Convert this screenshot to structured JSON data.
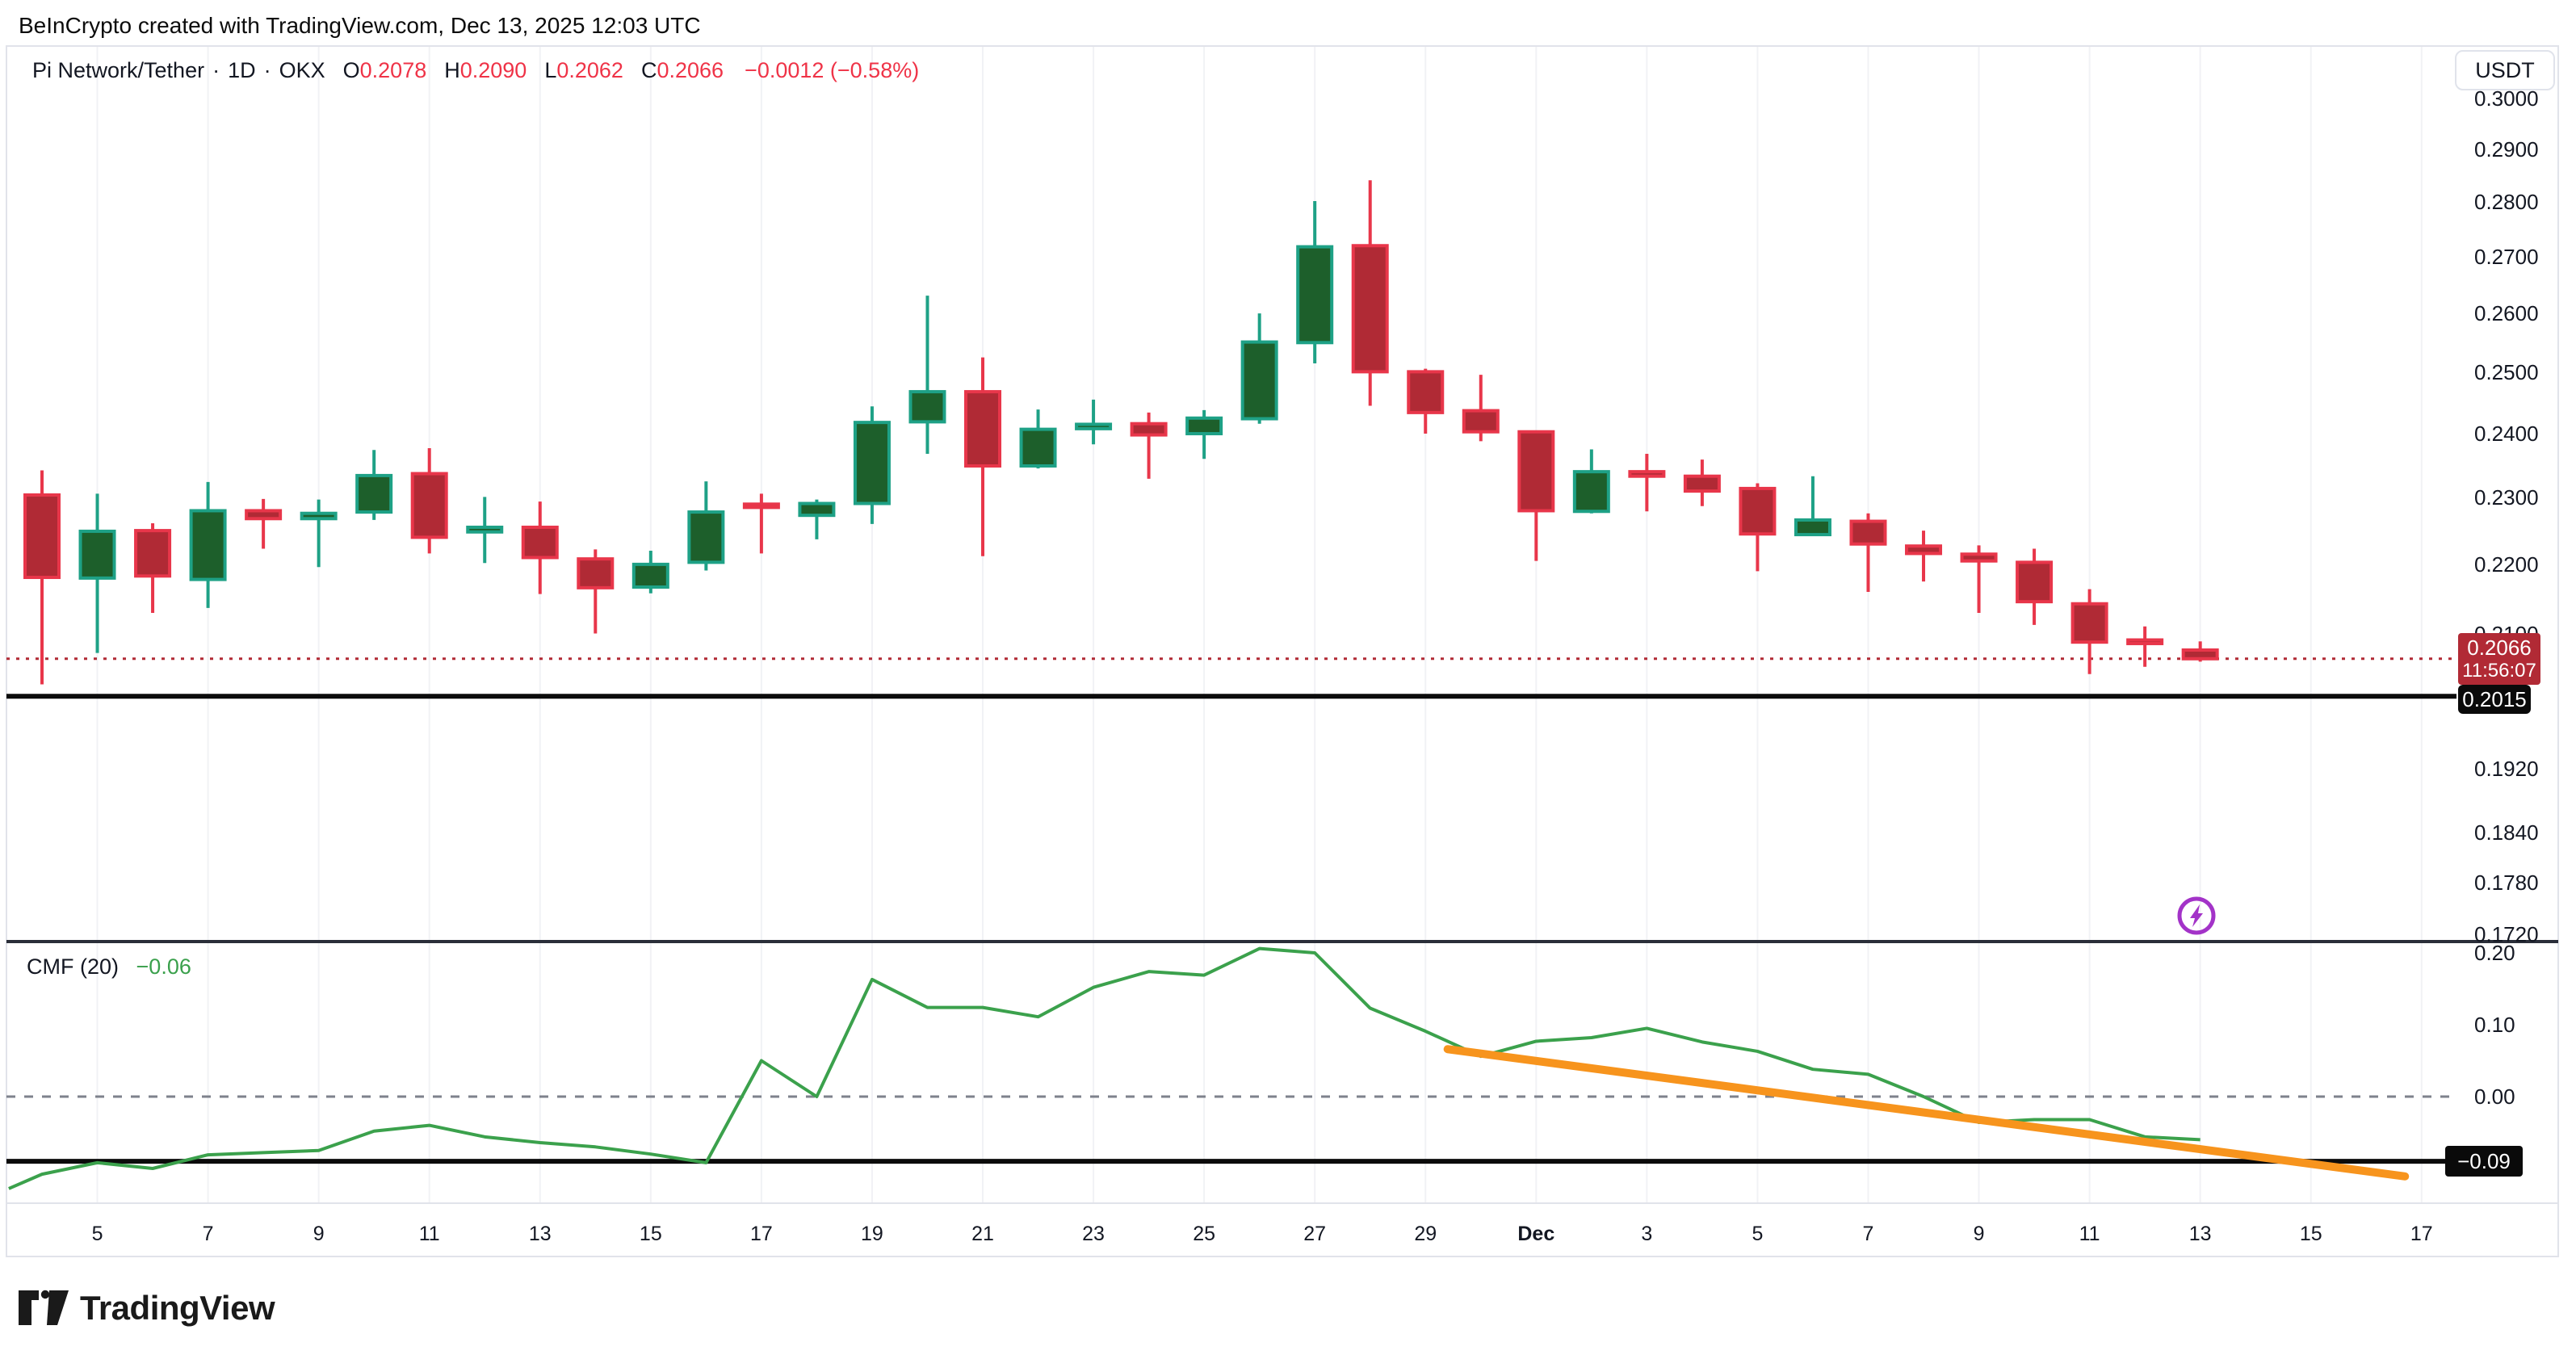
{
  "header": {
    "attribution": "BeInCrypto created with TradingView.com, Dec 13, 2025 12:03 UTC"
  },
  "symbol_bar": {
    "title": "Pi Network/Tether",
    "separator": "·",
    "interval": "1D",
    "exchange": "OKX",
    "ohlc": [
      {
        "k": "O",
        "v": "0.2078"
      },
      {
        "k": "H",
        "v": "0.2090"
      },
      {
        "k": "L",
        "v": "0.2062"
      },
      {
        "k": "C",
        "v": "0.2066"
      }
    ],
    "change": "−0.0012 (−0.58%)",
    "quote_button": "USDT"
  },
  "price_scale": {
    "current": {
      "price": "0.2066",
      "countdown": "11:56:07"
    },
    "support_label": "0.2015"
  },
  "indicator": {
    "name": "CMF",
    "params": "(20)",
    "value": "−0.06",
    "level_label": "−0.09"
  },
  "footer": {
    "brand": "TradingView"
  },
  "chart_data": {
    "type": "candlestick",
    "title": "Pi Network/Tether 1D OKX with CMF(20) indicator",
    "price_axis": {
      "ticks": [
        "0.3000",
        "0.2900",
        "0.2800",
        "0.2700",
        "0.2600",
        "0.2500",
        "0.2400",
        "0.2300",
        "0.2200",
        "0.2100",
        "0.1920",
        "0.1840",
        "0.1780",
        "0.1720"
      ],
      "scale": "logarithmic",
      "range_top": 0.305,
      "range_bottom": 0.171
    },
    "cmf_axis": {
      "ticks": [
        "0.20",
        "0.10",
        "0.00"
      ],
      "level": -0.09,
      "range": [
        -0.14,
        0.22
      ]
    },
    "x_ticks": [
      {
        "day_index": 1,
        "label": "5"
      },
      {
        "day_index": 3,
        "label": "7"
      },
      {
        "day_index": 5,
        "label": "9"
      },
      {
        "day_index": 7,
        "label": "11"
      },
      {
        "day_index": 9,
        "label": "13"
      },
      {
        "day_index": 11,
        "label": "15"
      },
      {
        "day_index": 13,
        "label": "17"
      },
      {
        "day_index": 15,
        "label": "19"
      },
      {
        "day_index": 17,
        "label": "21"
      },
      {
        "day_index": 19,
        "label": "23"
      },
      {
        "day_index": 21,
        "label": "25"
      },
      {
        "day_index": 23,
        "label": "27"
      },
      {
        "day_index": 25,
        "label": "29"
      },
      {
        "day_index": 27,
        "label": "Dec",
        "bold": true
      },
      {
        "day_index": 29,
        "label": "3"
      },
      {
        "day_index": 31,
        "label": "5"
      },
      {
        "day_index": 33,
        "label": "7"
      },
      {
        "day_index": 35,
        "label": "9"
      },
      {
        "day_index": 37,
        "label": "11"
      },
      {
        "day_index": 39,
        "label": "13"
      },
      {
        "day_index": 41,
        "label": "15"
      },
      {
        "day_index": 43,
        "label": "17"
      }
    ],
    "candles": [
      {
        "d": "Nov 4",
        "o": 0.2304,
        "h": 0.2342,
        "l": 0.2031,
        "c": 0.2181
      },
      {
        "d": "Nov 5",
        "o": 0.218,
        "h": 0.2306,
        "l": 0.2074,
        "c": 0.2249
      },
      {
        "d": "Nov 6",
        "o": 0.225,
        "h": 0.2261,
        "l": 0.213,
        "c": 0.2183
      },
      {
        "d": "Nov 7",
        "o": 0.2178,
        "h": 0.2324,
        "l": 0.2137,
        "c": 0.228
      },
      {
        "d": "Nov 8",
        "o": 0.228,
        "h": 0.2298,
        "l": 0.2223,
        "c": 0.2268
      },
      {
        "d": "Nov 9",
        "o": 0.2268,
        "h": 0.2297,
        "l": 0.2196,
        "c": 0.2276
      },
      {
        "d": "Nov 10",
        "o": 0.2278,
        "h": 0.2374,
        "l": 0.2266,
        "c": 0.2334
      },
      {
        "d": "Nov 11",
        "o": 0.2337,
        "h": 0.2377,
        "l": 0.2216,
        "c": 0.224
      },
      {
        "d": "Nov 12",
        "o": 0.2248,
        "h": 0.2301,
        "l": 0.2202,
        "c": 0.2255
      },
      {
        "d": "Nov 13",
        "o": 0.2255,
        "h": 0.2294,
        "l": 0.2157,
        "c": 0.221
      },
      {
        "d": "Nov 14",
        "o": 0.2208,
        "h": 0.2222,
        "l": 0.2101,
        "c": 0.2166
      },
      {
        "d": "Nov 15",
        "o": 0.2167,
        "h": 0.222,
        "l": 0.2158,
        "c": 0.22
      },
      {
        "d": "Nov 16",
        "o": 0.2203,
        "h": 0.2325,
        "l": 0.2191,
        "c": 0.2278
      },
      {
        "d": "Nov 17",
        "o": 0.229,
        "h": 0.2306,
        "l": 0.2216,
        "c": 0.2285
      },
      {
        "d": "Nov 18",
        "o": 0.2273,
        "h": 0.2297,
        "l": 0.2237,
        "c": 0.2291
      },
      {
        "d": "Nov 19",
        "o": 0.2291,
        "h": 0.2444,
        "l": 0.226,
        "c": 0.2418
      },
      {
        "d": "Nov 20",
        "o": 0.2419,
        "h": 0.2631,
        "l": 0.2368,
        "c": 0.2468
      },
      {
        "d": "Nov 21",
        "o": 0.2468,
        "h": 0.2525,
        "l": 0.2212,
        "c": 0.2349
      },
      {
        "d": "Nov 22",
        "o": 0.2349,
        "h": 0.2439,
        "l": 0.2345,
        "c": 0.2407
      },
      {
        "d": "Nov 23",
        "o": 0.2408,
        "h": 0.2455,
        "l": 0.2383,
        "c": 0.2415
      },
      {
        "d": "Nov 24",
        "o": 0.2416,
        "h": 0.2434,
        "l": 0.2329,
        "c": 0.2398
      },
      {
        "d": "Nov 25",
        "o": 0.24,
        "h": 0.2438,
        "l": 0.236,
        "c": 0.2425
      },
      {
        "d": "Nov 26",
        "o": 0.2424,
        "h": 0.26,
        "l": 0.2416,
        "c": 0.2551
      },
      {
        "d": "Nov 27",
        "o": 0.255,
        "h": 0.2802,
        "l": 0.2515,
        "c": 0.2718
      },
      {
        "d": "Nov 28",
        "o": 0.272,
        "h": 0.2841,
        "l": 0.2445,
        "c": 0.2501
      },
      {
        "d": "Nov 29",
        "o": 0.2501,
        "h": 0.2506,
        "l": 0.24,
        "c": 0.2434
      },
      {
        "d": "Nov 30",
        "o": 0.2437,
        "h": 0.2496,
        "l": 0.2388,
        "c": 0.2403
      },
      {
        "d": "Dec 1",
        "o": 0.2403,
        "h": 0.2405,
        "l": 0.2205,
        "c": 0.228
      },
      {
        "d": "Dec 2",
        "o": 0.2279,
        "h": 0.2375,
        "l": 0.2276,
        "c": 0.234
      },
      {
        "d": "Dec 3",
        "o": 0.234,
        "h": 0.2368,
        "l": 0.2279,
        "c": 0.2333
      },
      {
        "d": "Dec 4",
        "o": 0.2333,
        "h": 0.2359,
        "l": 0.2287,
        "c": 0.231
      },
      {
        "d": "Dec 5",
        "o": 0.2314,
        "h": 0.2322,
        "l": 0.219,
        "c": 0.2245
      },
      {
        "d": "Dec 6",
        "o": 0.2244,
        "h": 0.2333,
        "l": 0.2242,
        "c": 0.2266
      },
      {
        "d": "Dec 7",
        "o": 0.2264,
        "h": 0.2276,
        "l": 0.216,
        "c": 0.223
      },
      {
        "d": "Dec 8",
        "o": 0.2227,
        "h": 0.225,
        "l": 0.2175,
        "c": 0.2216
      },
      {
        "d": "Dec 9",
        "o": 0.2215,
        "h": 0.2228,
        "l": 0.213,
        "c": 0.2205
      },
      {
        "d": "Dec 10",
        "o": 0.2203,
        "h": 0.2223,
        "l": 0.2113,
        "c": 0.2146
      },
      {
        "d": "Dec 11",
        "o": 0.2143,
        "h": 0.2164,
        "l": 0.2045,
        "c": 0.2089
      },
      {
        "d": "Dec 12",
        "o": 0.2092,
        "h": 0.2111,
        "l": 0.2055,
        "c": 0.2087
      },
      {
        "d": "Dec 13",
        "o": 0.2078,
        "h": 0.209,
        "l": 0.2062,
        "c": 0.2066
      }
    ],
    "cmf_series": {
      "name": "CMF (20)",
      "points": [
        [
          -0.6,
          -0.128
        ],
        [
          0,
          -0.108
        ],
        [
          1,
          -0.092
        ],
        [
          2,
          -0.1
        ],
        [
          3,
          -0.081
        ],
        [
          4,
          -0.078
        ],
        [
          5,
          -0.075
        ],
        [
          6,
          -0.048
        ],
        [
          7,
          -0.04
        ],
        [
          8,
          -0.056
        ],
        [
          9,
          -0.064
        ],
        [
          10,
          -0.07
        ],
        [
          11,
          -0.08
        ],
        [
          12,
          -0.092
        ],
        [
          13,
          0.05
        ],
        [
          14,
          0.0
        ],
        [
          15,
          0.163
        ],
        [
          16,
          0.124
        ],
        [
          17,
          0.124
        ],
        [
          18,
          0.111
        ],
        [
          19,
          0.152
        ],
        [
          20,
          0.174
        ],
        [
          21,
          0.169
        ],
        [
          22,
          0.206
        ],
        [
          23,
          0.2
        ],
        [
          24,
          0.123
        ],
        [
          25,
          0.091
        ],
        [
          26,
          0.056
        ],
        [
          27,
          0.077
        ],
        [
          28,
          0.082
        ],
        [
          29,
          0.095
        ],
        [
          30,
          0.076
        ],
        [
          31,
          0.063
        ],
        [
          32,
          0.038
        ],
        [
          33,
          0.031
        ],
        [
          34,
          0.0
        ],
        [
          35,
          -0.036
        ],
        [
          36,
          -0.032
        ],
        [
          37,
          -0.032
        ],
        [
          38,
          -0.056
        ],
        [
          39,
          -0.06
        ]
      ]
    },
    "trendline": {
      "from": {
        "day_index": 25.4,
        "value": 0.066
      },
      "to": {
        "day_index": 42.7,
        "value": -0.111
      }
    },
    "levels": {
      "current_price": 0.2066,
      "support_price": 0.2015,
      "cmf_level": -0.09,
      "cmf_zero": 0.0
    },
    "colors": {
      "up_border": "#1ea186",
      "up_fill": "#1d5f2b",
      "down_border": "#e8364a",
      "down_fill": "#b02a35",
      "current_line": "#b12a35",
      "current_label_bg": "#b12a35",
      "support_line": "#0b0b0b",
      "cmf_line": "#3ba14c",
      "indicator_value": "#3aa04c",
      "trendline": "#f7941d",
      "zero_dash": "#7e828c",
      "pane_separator": "#2a2e39",
      "widget_border": "#e1e3ea",
      "gridline": "#f1f2f5",
      "flash_icon": "#a333c8",
      "text_red": "#ef3347"
    }
  }
}
